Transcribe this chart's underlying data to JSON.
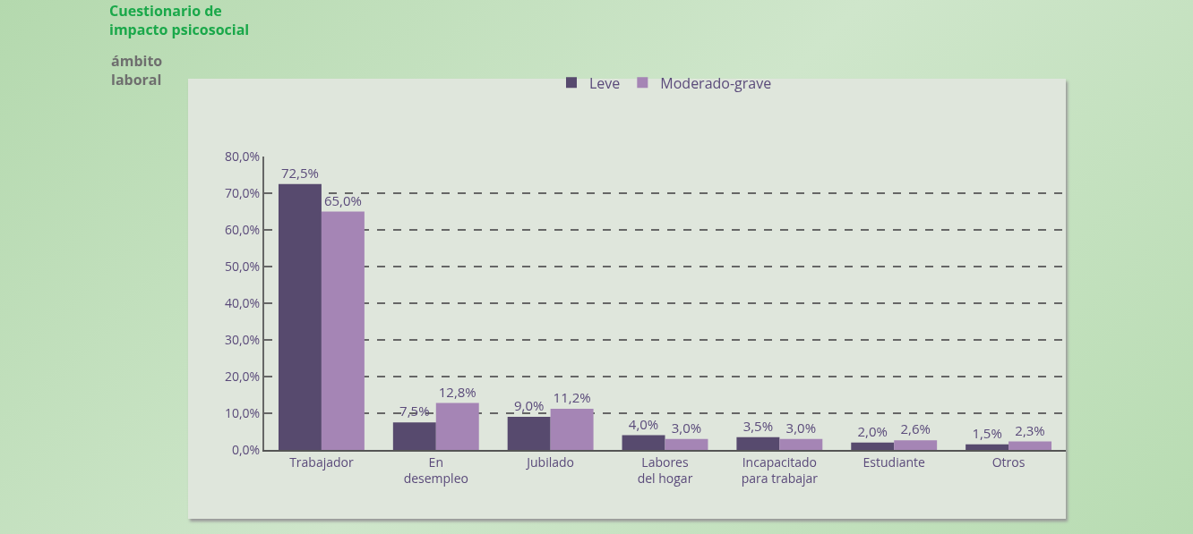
{
  "chart_data": {
    "type": "bar",
    "title": "Cuestionario de\nimpacto psicosocial",
    "subtitle": "ámbito\nlaboral",
    "categories": [
      "Trabajador",
      "En\ndesempleo",
      "Jubilado",
      "Labores\ndel hogar",
      "Incapacitado\npara trabajar",
      "Estudiante",
      "Otros"
    ],
    "series": [
      {
        "name": "Leve",
        "color": "#574a6e",
        "values": [
          72.5,
          7.5,
          9.0,
          4.0,
          3.5,
          2.0,
          1.5
        ],
        "value_labels": [
          "72,5%",
          "7,5%",
          "9,0%",
          "4,0%",
          "3,5%",
          "2,0%",
          "1,5%"
        ]
      },
      {
        "name": "Moderado-grave",
        "color": "#a585b5",
        "values": [
          65.0,
          12.8,
          11.2,
          3.0,
          3.0,
          2.6,
          2.3
        ],
        "value_labels": [
          "65,0%",
          "12,8%",
          "11,2%",
          "3,0%",
          "3,0%",
          "2,6%",
          "2,3%"
        ]
      }
    ],
    "ylim": [
      0,
      80
    ],
    "yticks": [
      {
        "value": 0,
        "label": "0,0%"
      },
      {
        "value": 10,
        "label": "10,0%"
      },
      {
        "value": 20,
        "label": "20,0%"
      },
      {
        "value": 30,
        "label": "30,0%"
      },
      {
        "value": 40,
        "label": "40,0%"
      },
      {
        "value": 50,
        "label": "50,0%"
      },
      {
        "value": 60,
        "label": "60,0%"
      },
      {
        "value": 70,
        "label": "70,0%"
      },
      {
        "value": 80,
        "label": "80,0%"
      }
    ],
    "grid": "y",
    "legend": "top"
  }
}
